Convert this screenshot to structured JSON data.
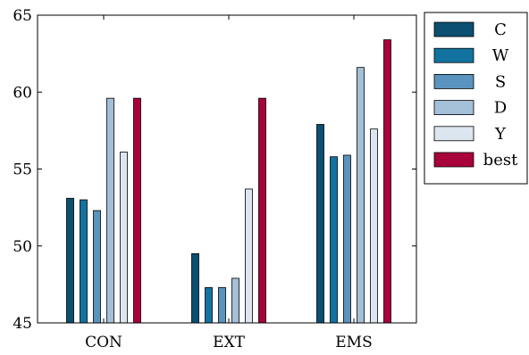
{
  "chart_data": {
    "type": "bar",
    "categories": [
      "CON",
      "EXT",
      "EMS"
    ],
    "series": [
      {
        "name": "C",
        "color": "#0b4f72",
        "values": [
          53.1,
          49.5,
          57.9
        ]
      },
      {
        "name": "W",
        "color": "#1273a0",
        "values": [
          53.0,
          47.3,
          55.8
        ]
      },
      {
        "name": "S",
        "color": "#5a93bd",
        "values": [
          52.3,
          47.3,
          55.9
        ]
      },
      {
        "name": "D",
        "color": "#a4bfd8",
        "values": [
          59.6,
          47.9,
          61.6
        ]
      },
      {
        "name": "Y",
        "color": "#dce6f0",
        "values": [
          56.1,
          53.7,
          57.6
        ]
      },
      {
        "name": "best",
        "color": "#a8033a",
        "values": [
          59.6,
          59.6,
          63.4
        ]
      }
    ],
    "ylim": [
      45,
      65
    ],
    "yticks": [
      45,
      50,
      55,
      60,
      65
    ],
    "legend_position": "outside-top-right",
    "grid": false
  }
}
